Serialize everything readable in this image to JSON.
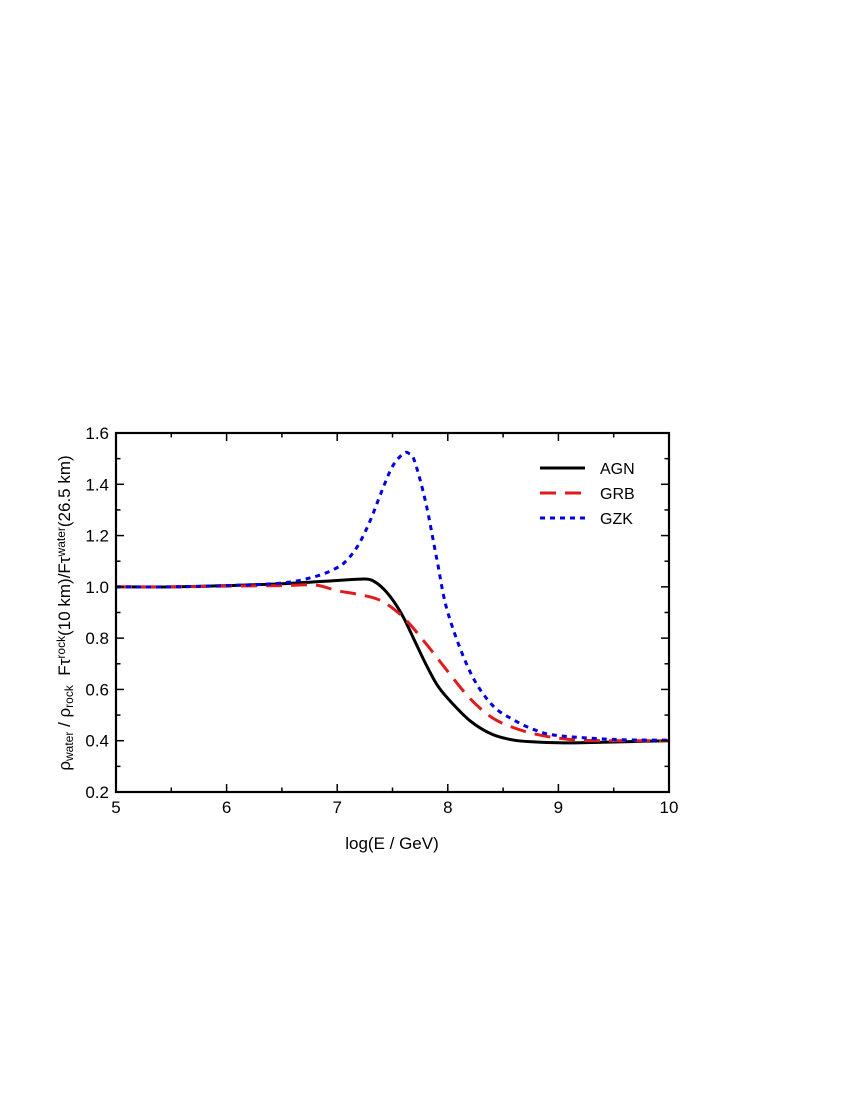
{
  "chart_data": {
    "type": "line",
    "xlabel": "log(E / GeV)",
    "ylabel": {
      "parts": [
        {
          "text": "ρ",
          "style": "normal"
        },
        {
          "text": "water",
          "style": "sub"
        },
        {
          "text": " / ρ",
          "style": "normal"
        },
        {
          "text": "rock",
          "style": "sub"
        },
        {
          "text": "  Fτ",
          "style": "normal"
        },
        {
          "text": "rock",
          "style": "sup"
        },
        {
          "text": "(10 km)/Fτ",
          "style": "normal"
        },
        {
          "text": "water",
          "style": "sup"
        },
        {
          "text": "(26.5 km)",
          "style": "normal"
        }
      ]
    },
    "xlim": [
      5,
      10
    ],
    "ylim": [
      0.2,
      1.6
    ],
    "xticks": [
      5,
      6,
      7,
      8,
      9,
      10
    ],
    "xtick_labels": [
      "5",
      "6",
      "7",
      "8",
      "9",
      "10"
    ],
    "yticks": [
      0.2,
      0.4,
      0.6,
      0.8,
      1.0,
      1.2,
      1.4,
      1.6
    ],
    "ytick_labels": [
      "0.2",
      "0.4",
      "0.6",
      "0.8",
      "1.0",
      "1.2",
      "1.4",
      "1.6"
    ],
    "legend_position": "top-right",
    "grid": false,
    "series": [
      {
        "name": "AGN",
        "color": "#000000",
        "dash": "solid",
        "x": [
          5.0,
          5.5,
          6.0,
          6.5,
          7.0,
          7.2,
          7.3,
          7.4,
          7.5,
          7.6,
          7.7,
          7.8,
          7.9,
          8.0,
          8.2,
          8.4,
          8.6,
          8.8,
          9.0,
          9.2,
          9.5,
          10.0
        ],
        "y": [
          1.0,
          1.0,
          1.005,
          1.012,
          1.025,
          1.03,
          1.028,
          1.0,
          0.95,
          0.88,
          0.79,
          0.7,
          0.62,
          0.565,
          0.478,
          0.425,
          0.402,
          0.395,
          0.392,
          0.392,
          0.395,
          0.4
        ]
      },
      {
        "name": "GRB",
        "color": "#e31a1c",
        "dash": "dashed",
        "x": [
          5.0,
          5.5,
          6.0,
          6.5,
          6.8,
          7.0,
          7.2,
          7.4,
          7.6,
          7.8,
          8.0,
          8.2,
          8.4,
          8.6,
          8.8,
          9.0,
          9.2,
          9.5,
          10.0
        ],
        "y": [
          1.0,
          1.0,
          1.003,
          1.005,
          1.007,
          0.985,
          0.97,
          0.945,
          0.88,
          0.78,
          0.67,
          0.565,
          0.49,
          0.45,
          0.425,
          0.41,
          0.402,
          0.4,
          0.4
        ]
      },
      {
        "name": "GZK",
        "color": "#0000e0",
        "dash": "dotted",
        "x": [
          5.0,
          5.5,
          6.0,
          6.5,
          6.8,
          7.0,
          7.1,
          7.2,
          7.3,
          7.4,
          7.5,
          7.6,
          7.65,
          7.7,
          7.8,
          7.9,
          8.0,
          8.2,
          8.4,
          8.6,
          8.8,
          9.0,
          9.5,
          10.0
        ],
        "y": [
          1.0,
          1.0,
          1.005,
          1.015,
          1.04,
          1.075,
          1.11,
          1.17,
          1.26,
          1.37,
          1.47,
          1.52,
          1.52,
          1.49,
          1.33,
          1.11,
          0.9,
          0.67,
          0.54,
          0.48,
          0.44,
          0.42,
          0.405,
          0.402
        ]
      }
    ]
  }
}
